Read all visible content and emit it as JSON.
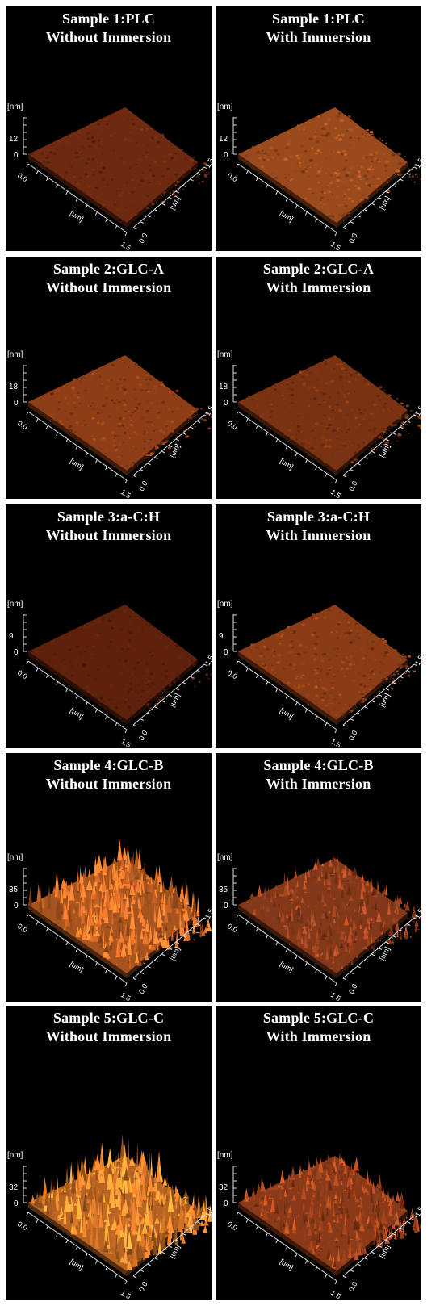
{
  "figure": {
    "axis_labels": {
      "z_unit": "[nm]",
      "xy_unit": "[um]",
      "xy_min": "0.0",
      "xy_max": "1.5"
    },
    "rows": [
      {
        "sample": "Sample 1:PLC",
        "panels": [
          {
            "line1": "Sample 1:PLC",
            "line2": "Without Immersion",
            "z_tick": "12",
            "z_zero": "0",
            "roughness": 0.15,
            "tint": "#6e2a10"
          },
          {
            "line1": "Sample 1:PLC",
            "line2": "With Immersion",
            "z_tick": "12",
            "z_zero": "0",
            "roughness": 0.3,
            "tint": "#9a4a1c"
          }
        ]
      },
      {
        "sample": "Sample 2:GLC-A",
        "panels": [
          {
            "line1": "Sample 2:GLC-A",
            "line2": "Without Immersion",
            "z_tick": "18",
            "z_zero": "0",
            "roughness": 0.25,
            "tint": "#8e3e16"
          },
          {
            "line1": "Sample 2:GLC-A",
            "line2": "With Immersion",
            "z_tick": "18",
            "z_zero": "0",
            "roughness": 0.25,
            "tint": "#7a3312"
          }
        ]
      },
      {
        "sample": "Sample 3:a-C:H",
        "panels": [
          {
            "line1": "Sample 3:a-C:H",
            "line2": "Without Immersion",
            "z_tick": "9",
            "z_zero": "0",
            "roughness": 0.1,
            "tint": "#5e220c"
          },
          {
            "line1": "Sample 3:a-C:H",
            "line2": "With Immersion",
            "z_tick": "9",
            "z_zero": "0",
            "roughness": 0.3,
            "tint": "#8a3c16"
          }
        ]
      },
      {
        "sample": "Sample 4:GLC-B",
        "panels": [
          {
            "line1": "Sample 4:GLC-B",
            "line2": "Without Immersion",
            "z_tick": "35",
            "z_zero": "0",
            "roughness": 0.85,
            "tint": "#a8541f"
          },
          {
            "line1": "Sample 4:GLC-B",
            "line2": "With Immersion",
            "z_tick": "35",
            "z_zero": "0",
            "roughness": 0.6,
            "tint": "#84381a"
          }
        ]
      },
      {
        "sample": "Sample 5:GLC-C",
        "panels": [
          {
            "line1": "Sample 5:GLC-C",
            "line2": "Without Immersion",
            "z_tick": "32",
            "z_zero": "0",
            "roughness": 0.95,
            "tint": "#b86422"
          },
          {
            "line1": "Sample 5:GLC-C",
            "line2": "With Immersion",
            "z_tick": "32",
            "z_zero": "0",
            "roughness": 0.65,
            "tint": "#8a3a18"
          }
        ]
      }
    ]
  }
}
